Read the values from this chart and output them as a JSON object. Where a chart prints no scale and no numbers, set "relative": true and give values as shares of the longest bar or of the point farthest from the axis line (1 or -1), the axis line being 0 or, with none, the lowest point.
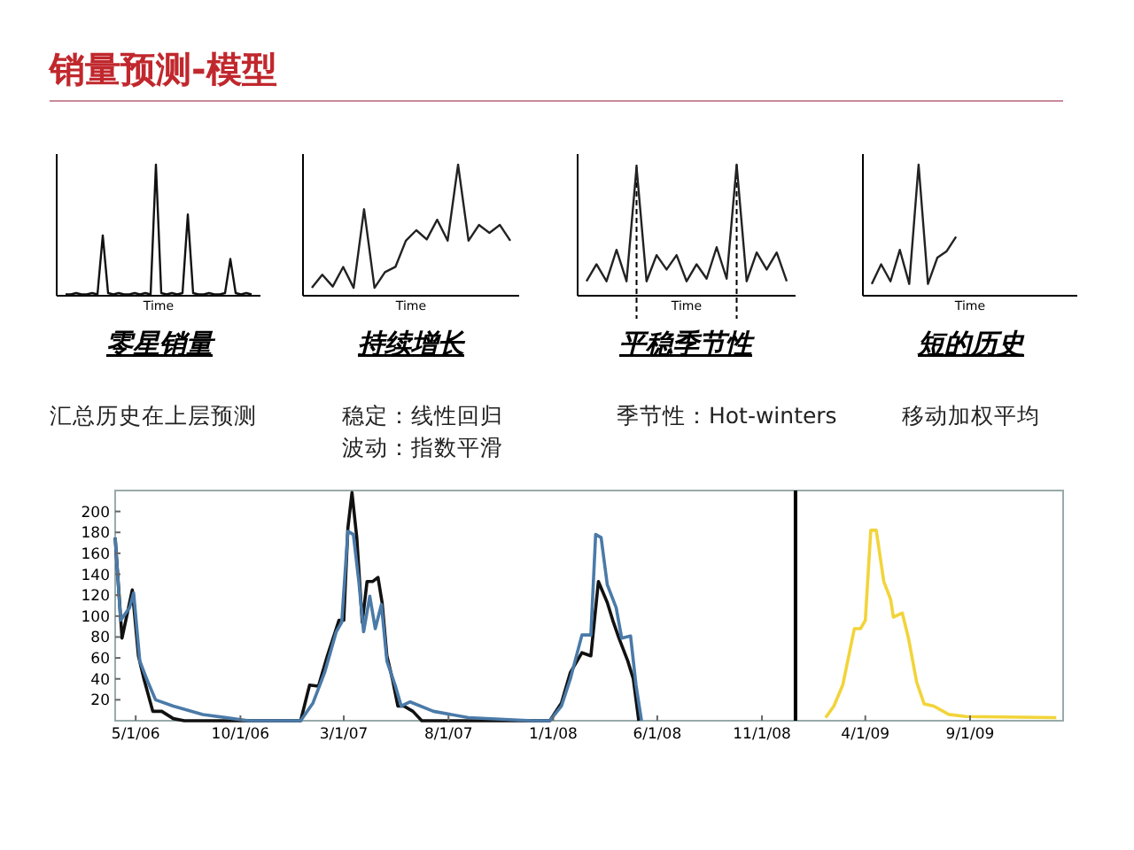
{
  "chart_data": [
    {
      "type": "other",
      "title": "销量预测-模型"
    },
    {
      "type": "line",
      "relative": true,
      "title": "零星销量",
      "xlabel": "Time",
      "annotations": [
        "汇总历史在上层预测"
      ],
      "categories": [
        null,
        null,
        null,
        null,
        null,
        null,
        null,
        null,
        null,
        null,
        null,
        null,
        null,
        null,
        null,
        null,
        null,
        null,
        null,
        null,
        null,
        null,
        null,
        null,
        null,
        null,
        null,
        null,
        null,
        null,
        null,
        null,
        null,
        null,
        null,
        null
      ],
      "series": [
        {
          "color": "#111111",
          "values": [
            0.01,
            0.01,
            0.02,
            0.01,
            0.01,
            0.02,
            0.01,
            0.46,
            0.02,
            0.01,
            0.02,
            0.01,
            0.01,
            0.02,
            0.01,
            0.02,
            0.01,
            1,
            0.02,
            0.01,
            0.02,
            0.01,
            0.02,
            0.62,
            0.02,
            0.01,
            0.01,
            0.02,
            0.01,
            0.01,
            0.02,
            0.28,
            0.02,
            0.01,
            0.02,
            0.01
          ]
        }
      ]
    },
    {
      "type": "line",
      "relative": true,
      "title": "持续增长",
      "xlabel": "Time",
      "annotations": [
        "稳定：线性回归",
        "波动：指数平滑"
      ],
      "categories": [
        null,
        null,
        null,
        null,
        null,
        null,
        null,
        null,
        null,
        null,
        null,
        null,
        null,
        null,
        null,
        null,
        null,
        null,
        null,
        null
      ],
      "series": [
        {
          "color": "#222222",
          "values": [
            0.06,
            0.16,
            0.07,
            0.22,
            0.06,
            0.66,
            0.06,
            0.18,
            0.22,
            0.42,
            0.5,
            0.43,
            0.58,
            0.42,
            1,
            0.42,
            0.54,
            0.48,
            0.54,
            0.42
          ]
        }
      ]
    },
    {
      "type": "line",
      "relative": true,
      "title": "平稳季节性",
      "xlabel": "Time",
      "annotations": [
        "季节性：Hot-winters"
      ],
      "categories": [
        null,
        null,
        null,
        null,
        null,
        null,
        null,
        null,
        null,
        null,
        null,
        null,
        null,
        null,
        null,
        null,
        null,
        null,
        null,
        null,
        null
      ],
      "series": [
        {
          "color": "#222222",
          "values": [
            0.11,
            0.24,
            0.11,
            0.35,
            0.11,
            0.98,
            0.11,
            0.31,
            0.2,
            0.31,
            0.11,
            0.24,
            0.13,
            0.37,
            0.13,
            1,
            0.11,
            0.33,
            0.2,
            0.33,
            0.11
          ]
        }
      ]
    },
    {
      "type": "line",
      "relative": true,
      "title": "短的历史",
      "xlabel": "Time",
      "annotations": [
        "移动加权平均"
      ],
      "categories": [
        null,
        null,
        null,
        null,
        null,
        null,
        null,
        null,
        null,
        null,
        null,
        null,
        null,
        null,
        null,
        null,
        null,
        null,
        null,
        null,
        null,
        null
      ],
      "series": [
        {
          "color": "#222222",
          "values": [
            0.09,
            0.24,
            0.11,
            0.35,
            0.09,
            1,
            0.09,
            0.29,
            0.34,
            0.45,
            null,
            null,
            null,
            null,
            null,
            null,
            null,
            null,
            null,
            null,
            null,
            null
          ]
        }
      ]
    },
    {
      "type": "line",
      "xlim": [
        "2006-04-01",
        "2010-01-15"
      ],
      "ylim": [
        0,
        220
      ],
      "xticks": [
        {
          "value": "2006-05-01",
          "label": "5/1/06"
        },
        {
          "value": "2006-10-01",
          "label": "10/1/06"
        },
        {
          "value": "2007-03-01",
          "label": "3/1/07"
        },
        {
          "value": "2007-08-01",
          "label": "8/1/07"
        },
        {
          "value": "2008-01-01",
          "label": "1/1/08"
        },
        {
          "value": "2008-06-01",
          "label": "6/1/08"
        },
        {
          "value": "2008-11-01",
          "label": "11/1/08"
        },
        {
          "value": "2009-04-01",
          "label": "4/1/09"
        },
        {
          "value": "2009-09-01",
          "label": "9/1/09"
        }
      ],
      "yticks": [
        20,
        40,
        60,
        80,
        100,
        120,
        140,
        160,
        180,
        200
      ],
      "ref_lines": [
        {
          "axis": "x",
          "value": "2008-12-20",
          "color": "#000000"
        }
      ],
      "series": [
        {
          "color": "#111111",
          "x": [
            "2006-04-01",
            "2006-04-11",
            "2006-04-26",
            "2006-05-05",
            "2006-05-13",
            "2006-05-26",
            "2006-06-08",
            "2006-06-25",
            "2006-07-11",
            "2006-12-28",
            "2007-01-10",
            "2007-01-23",
            "2007-02-05",
            "2007-02-22",
            "2007-03-01",
            "2007-03-07",
            "2007-03-13",
            "2007-03-20",
            "2007-03-28",
            "2007-04-04",
            "2007-04-12",
            "2007-04-20",
            "2007-04-26",
            "2007-05-03",
            "2007-05-11",
            "2007-05-19",
            "2007-05-28",
            "2007-06-10",
            "2007-06-23",
            "2007-12-27",
            "2008-01-13",
            "2008-01-26",
            "2008-02-12",
            "2008-02-25",
            "2008-03-07",
            "2008-03-20",
            "2008-03-28",
            "2008-04-06",
            "2008-04-19",
            "2008-04-27",
            "2008-05-05"
          ],
          "values": [
            175,
            79,
            125,
            62,
            40,
            9,
            9,
            2,
            0,
            0,
            34,
            33,
            62,
            96,
            96,
            184,
            218,
            175,
            94,
            133,
            133,
            137,
            113,
            62,
            40,
            14,
            14,
            9,
            0,
            0,
            17,
            46,
            65,
            62,
            133,
            113,
            96,
            79,
            57,
            40,
            0
          ]
        },
        {
          "color": "#4a7aa8",
          "x": [
            "2006-04-01",
            "2006-04-09",
            "2006-04-22",
            "2006-04-28",
            "2006-05-07",
            "2006-05-17",
            "2006-05-30",
            "2006-06-25",
            "2006-08-07",
            "2006-10-13",
            "2006-12-28",
            "2007-01-15",
            "2007-02-01",
            "2007-02-18",
            "2007-02-26",
            "2007-03-07",
            "2007-03-15",
            "2007-03-23",
            "2007-03-30",
            "2007-04-08",
            "2007-04-16",
            "2007-04-25",
            "2007-05-03",
            "2007-05-15",
            "2007-05-24",
            "2007-06-06",
            "2007-07-10",
            "2007-08-30",
            "2007-12-01",
            "2007-12-27",
            "2008-01-13",
            "2008-01-26",
            "2008-02-12",
            "2008-02-25",
            "2008-03-03",
            "2008-03-11",
            "2008-03-20",
            "2008-04-02",
            "2008-04-10",
            "2008-04-23",
            "2008-05-01",
            "2008-05-09"
          ],
          "values": [
            175,
            96,
            108,
            122,
            57,
            40,
            20,
            14,
            6,
            0,
            0,
            17,
            46,
            85,
            94,
            181,
            178,
            133,
            85,
            119,
            88,
            111,
            57,
            34,
            14,
            18,
            9,
            3,
            0,
            0,
            14,
            40,
            82,
            82,
            178,
            175,
            130,
            108,
            79,
            81,
            34,
            0
          ]
        },
        {
          "color": "#f2d43a",
          "x": [
            "2009-02-02",
            "2009-02-14",
            "2009-02-27",
            "2009-03-16",
            "2009-03-25",
            "2009-04-01",
            "2009-04-09",
            "2009-04-17",
            "2009-04-28",
            "2009-05-08",
            "2009-05-12",
            "2009-05-25",
            "2009-06-03",
            "2009-06-15",
            "2009-06-26",
            "2009-07-10",
            "2009-08-01",
            "2009-08-26",
            "2010-01-05"
          ],
          "values": [
            3,
            14,
            34,
            88,
            88,
            96,
            182,
            182,
            133,
            116,
            99,
            103,
            79,
            37,
            16,
            14,
            6,
            4,
            3
          ]
        }
      ]
    }
  ]
}
